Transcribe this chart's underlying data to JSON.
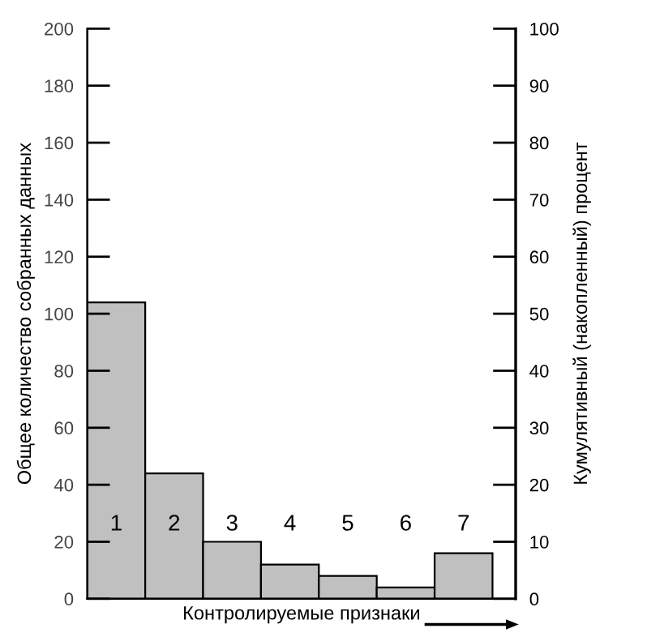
{
  "chart_data": {
    "type": "bar",
    "categories": [
      "1",
      "2",
      "3",
      "4",
      "5",
      "6",
      "7"
    ],
    "values": [
      104,
      44,
      20,
      12,
      8,
      4,
      16
    ],
    "color": "#c0c0c0",
    "xlabel": "Контролируемые признаки",
    "ylabel": "Общее количество собранных данных",
    "y2label": "Кумулятивный (накопленный) процент",
    "ylim": [
      0,
      200
    ],
    "yticks": [
      0,
      20,
      40,
      60,
      80,
      100,
      120,
      140,
      160,
      180,
      200
    ],
    "y2lim": [
      0,
      100
    ],
    "y2ticks": [
      0,
      10,
      20,
      30,
      40,
      50,
      60,
      70,
      80,
      90,
      100
    ],
    "grid": false,
    "legend": false
  }
}
